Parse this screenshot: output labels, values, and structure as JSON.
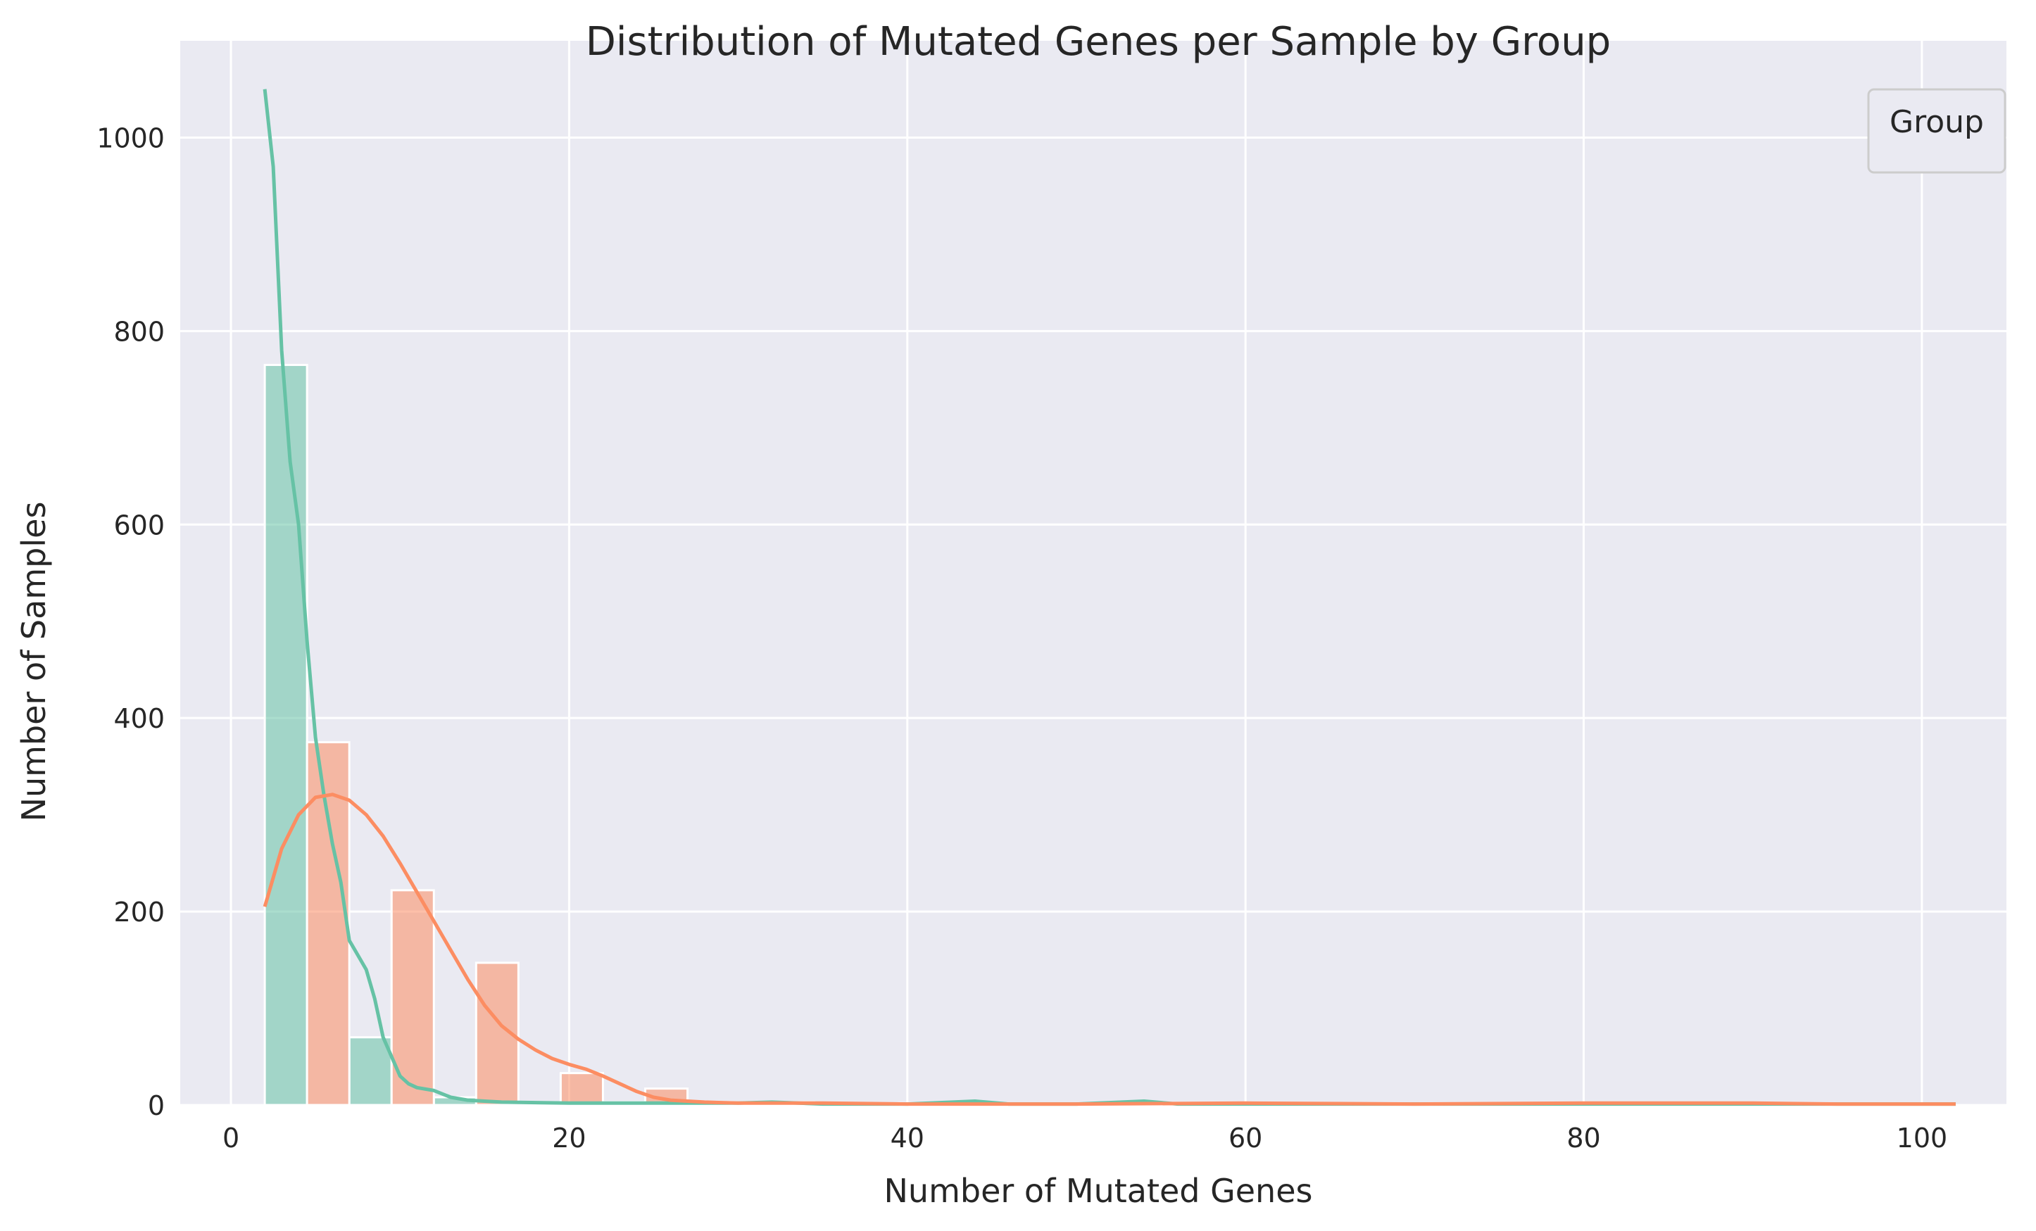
{
  "chart_data": {
    "type": "histogram",
    "title": "Distribution of Mutated Genes per Sample by Group",
    "xlabel": "Number of Mutated Genes",
    "ylabel": "Number of Samples",
    "xlim": [
      -3,
      105
    ],
    "ylim": [
      0,
      1100
    ],
    "xticks": [
      0,
      20,
      40,
      60,
      80,
      100
    ],
    "yticks": [
      0,
      200,
      400,
      600,
      800,
      1000
    ],
    "grid": true,
    "legend": {
      "title": "Group",
      "placement": "top-right",
      "entries": []
    },
    "bin_width": 2.5,
    "series": [
      {
        "color": "#66c2a5",
        "bars": [
          {
            "x0": 2.0,
            "x1": 4.5,
            "y": 765
          },
          {
            "x0": 7.0,
            "x1": 9.5,
            "y": 70
          },
          {
            "x0": 12.0,
            "x1": 14.5,
            "y": 8
          },
          {
            "x0": 17.0,
            "x1": 19.5,
            "y": 2
          },
          {
            "x0": 22.0,
            "x1": 24.5,
            "y": 3
          },
          {
            "x0": 27.0,
            "x1": 29.5,
            "y": 3
          },
          {
            "x0": 32.0,
            "x1": 34.5,
            "y": 3
          },
          {
            "x0": 42.0,
            "x1": 44.5,
            "y": 2
          },
          {
            "x0": 52.0,
            "x1": 54.5,
            "y": 2
          }
        ],
        "kde": [
          [
            2,
            1050
          ],
          [
            2.5,
            970
          ],
          [
            3,
            780
          ],
          [
            3.5,
            665
          ],
          [
            4,
            600
          ],
          [
            4.5,
            480
          ],
          [
            5,
            380
          ],
          [
            5.5,
            320
          ],
          [
            6,
            270
          ],
          [
            6.5,
            230
          ],
          [
            7,
            170
          ],
          [
            7.5,
            155
          ],
          [
            8,
            140
          ],
          [
            8.5,
            110
          ],
          [
            9,
            70
          ],
          [
            9.5,
            50
          ],
          [
            10,
            30
          ],
          [
            10.5,
            22
          ],
          [
            11,
            18
          ],
          [
            12,
            15
          ],
          [
            13,
            8
          ],
          [
            14,
            5
          ],
          [
            16,
            3
          ],
          [
            20,
            2
          ],
          [
            25,
            2
          ],
          [
            30,
            2
          ],
          [
            32,
            3
          ],
          [
            35,
            1
          ],
          [
            40,
            1
          ],
          [
            44,
            4
          ],
          [
            46,
            1
          ],
          [
            50,
            1
          ],
          [
            54,
            4
          ],
          [
            56,
            1
          ],
          [
            60,
            1
          ],
          [
            70,
            1
          ],
          [
            80,
            1
          ],
          [
            90,
            1
          ],
          [
            102,
            1
          ]
        ]
      },
      {
        "color": "#fc8d62",
        "bars": [
          {
            "x0": 4.5,
            "x1": 7.0,
            "y": 375
          },
          {
            "x0": 9.5,
            "x1": 12.0,
            "y": 222
          },
          {
            "x0": 14.5,
            "x1": 17.0,
            "y": 147
          },
          {
            "x0": 19.5,
            "x1": 22.0,
            "y": 33
          },
          {
            "x0": 24.5,
            "x1": 27.0,
            "y": 17
          },
          {
            "x0": 29.5,
            "x1": 32.0,
            "y": 3
          },
          {
            "x0": 34.5,
            "x1": 37.0,
            "y": 2
          },
          {
            "x0": 39.5,
            "x1": 42.0,
            "y": 2
          },
          {
            "x0": 59.5,
            "x1": 62.0,
            "y": 2
          },
          {
            "x0": 79.5,
            "x1": 82.0,
            "y": 2
          },
          {
            "x0": 89.5,
            "x1": 92.0,
            "y": 2
          }
        ],
        "kde": [
          [
            2,
            205
          ],
          [
            2.5,
            235
          ],
          [
            3,
            265
          ],
          [
            4,
            300
          ],
          [
            5,
            318
          ],
          [
            6,
            321
          ],
          [
            7,
            315
          ],
          [
            8,
            300
          ],
          [
            9,
            278
          ],
          [
            10,
            250
          ],
          [
            11,
            220
          ],
          [
            12,
            190
          ],
          [
            13,
            160
          ],
          [
            14,
            130
          ],
          [
            15,
            103
          ],
          [
            16,
            82
          ],
          [
            17,
            68
          ],
          [
            18,
            57
          ],
          [
            19,
            48
          ],
          [
            20,
            42
          ],
          [
            21,
            37
          ],
          [
            22,
            30
          ],
          [
            23,
            22
          ],
          [
            24,
            14
          ],
          [
            25,
            8
          ],
          [
            26,
            5
          ],
          [
            28,
            3
          ],
          [
            30,
            2
          ],
          [
            35,
            2
          ],
          [
            40,
            1
          ],
          [
            50,
            1
          ],
          [
            60,
            2
          ],
          [
            70,
            1
          ],
          [
            80,
            2
          ],
          [
            90,
            2
          ],
          [
            95,
            1
          ],
          [
            102,
            1
          ]
        ]
      }
    ]
  }
}
